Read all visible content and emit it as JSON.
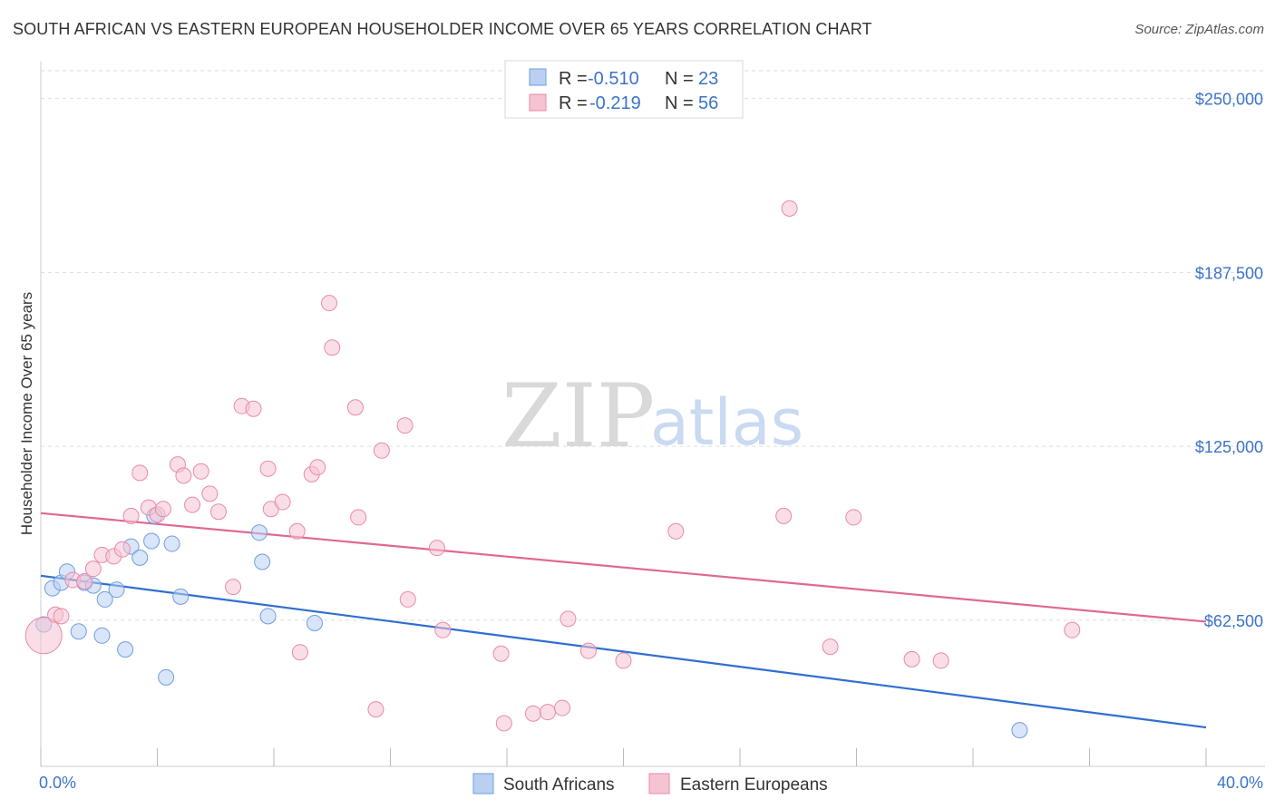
{
  "chart_data": {
    "type": "scatter",
    "title": "SOUTH AFRICAN VS EASTERN EUROPEAN HOUSEHOLDER INCOME OVER 65 YEARS CORRELATION CHART",
    "source": "Source: ZipAtlas.com",
    "ylabel": "Householder Income Over 65 years",
    "xlim": [
      0,
      40
    ],
    "ylim": [
      10000,
      260000
    ],
    "x_tick_labels": [
      "0.0%",
      "40.0%"
    ],
    "y_ticks": [
      {
        "value": 250000,
        "label": "$250,000"
      },
      {
        "value": 187500,
        "label": "$187,500"
      },
      {
        "value": 125000,
        "label": "$125,000"
      },
      {
        "value": 62500,
        "label": "$62,500"
      }
    ],
    "watermark": {
      "part1": "ZIP",
      "part2": "atlas"
    },
    "legend": {
      "r_label": "R =",
      "n_label": "N =",
      "entries": [
        {
          "r": "-0.510",
          "n": "23"
        },
        {
          "r": "-0.219",
          "n": "56"
        }
      ]
    },
    "series": [
      {
        "name": "South Africans",
        "color": "#6f9ee0",
        "fill": "#b9d0f2",
        "line_color": "#2f6fcf",
        "trend": [
          [
            0,
            78500
          ],
          [
            40,
            24000
          ]
        ],
        "points": [
          [
            0.1,
            61000
          ],
          [
            0.4,
            74000
          ],
          [
            0.7,
            76000
          ],
          [
            0.9,
            80000
          ],
          [
            1.3,
            58500
          ],
          [
            1.5,
            76000
          ],
          [
            1.8,
            75000
          ],
          [
            2.1,
            57000
          ],
          [
            2.2,
            70000
          ],
          [
            2.6,
            73500
          ],
          [
            2.9,
            52000
          ],
          [
            3.1,
            89000
          ],
          [
            3.4,
            85000
          ],
          [
            3.8,
            91000
          ],
          [
            3.9,
            100000
          ],
          [
            4.3,
            42000
          ],
          [
            4.5,
            90000
          ],
          [
            4.8,
            71000
          ],
          [
            7.5,
            94000
          ],
          [
            7.6,
            83500
          ],
          [
            7.8,
            64000
          ],
          [
            9.4,
            61500
          ],
          [
            33.6,
            23000
          ]
        ]
      },
      {
        "name": "Eastern Europeans",
        "color": "#e88aa8",
        "fill": "#f6c3d3",
        "line_color": "#e06890",
        "trend": [
          [
            0,
            101000
          ],
          [
            40,
            62000
          ]
        ],
        "points": [
          [
            0.1,
            57000
          ],
          [
            0.5,
            64500
          ],
          [
            0.7,
            64000
          ],
          [
            1.1,
            77000
          ],
          [
            1.5,
            76500
          ],
          [
            1.8,
            81000
          ],
          [
            2.1,
            86000
          ],
          [
            2.5,
            85500
          ],
          [
            2.8,
            88000
          ],
          [
            3.1,
            100000
          ],
          [
            3.4,
            115500
          ],
          [
            3.7,
            103000
          ],
          [
            4.0,
            100500
          ],
          [
            4.2,
            102500
          ],
          [
            4.7,
            118500
          ],
          [
            4.9,
            114500
          ],
          [
            5.2,
            104000
          ],
          [
            5.5,
            116000
          ],
          [
            5.8,
            108000
          ],
          [
            6.1,
            101500
          ],
          [
            6.6,
            74500
          ],
          [
            6.9,
            139500
          ],
          [
            7.3,
            138500
          ],
          [
            7.8,
            117000
          ],
          [
            7.9,
            102500
          ],
          [
            8.3,
            105000
          ],
          [
            8.8,
            94500
          ],
          [
            8.9,
            51000
          ],
          [
            9.3,
            115000
          ],
          [
            9.5,
            117500
          ],
          [
            9.9,
            176500
          ],
          [
            10.0,
            160500
          ],
          [
            10.8,
            139000
          ],
          [
            10.9,
            99500
          ],
          [
            11.5,
            30500
          ],
          [
            11.7,
            123500
          ],
          [
            12.5,
            132500
          ],
          [
            12.6,
            70000
          ],
          [
            13.6,
            88500
          ],
          [
            13.8,
            59000
          ],
          [
            15.8,
            50500
          ],
          [
            15.9,
            25500
          ],
          [
            16.9,
            29000
          ],
          [
            17.4,
            29500
          ],
          [
            17.9,
            31000
          ],
          [
            18.1,
            63000
          ],
          [
            18.8,
            51500
          ],
          [
            20.0,
            48000
          ],
          [
            21.8,
            94500
          ],
          [
            25.5,
            100000
          ],
          [
            25.7,
            210500
          ],
          [
            27.1,
            53000
          ],
          [
            27.9,
            99500
          ],
          [
            29.9,
            48500
          ],
          [
            30.9,
            48000
          ],
          [
            35.4,
            59000
          ]
        ]
      }
    ]
  }
}
